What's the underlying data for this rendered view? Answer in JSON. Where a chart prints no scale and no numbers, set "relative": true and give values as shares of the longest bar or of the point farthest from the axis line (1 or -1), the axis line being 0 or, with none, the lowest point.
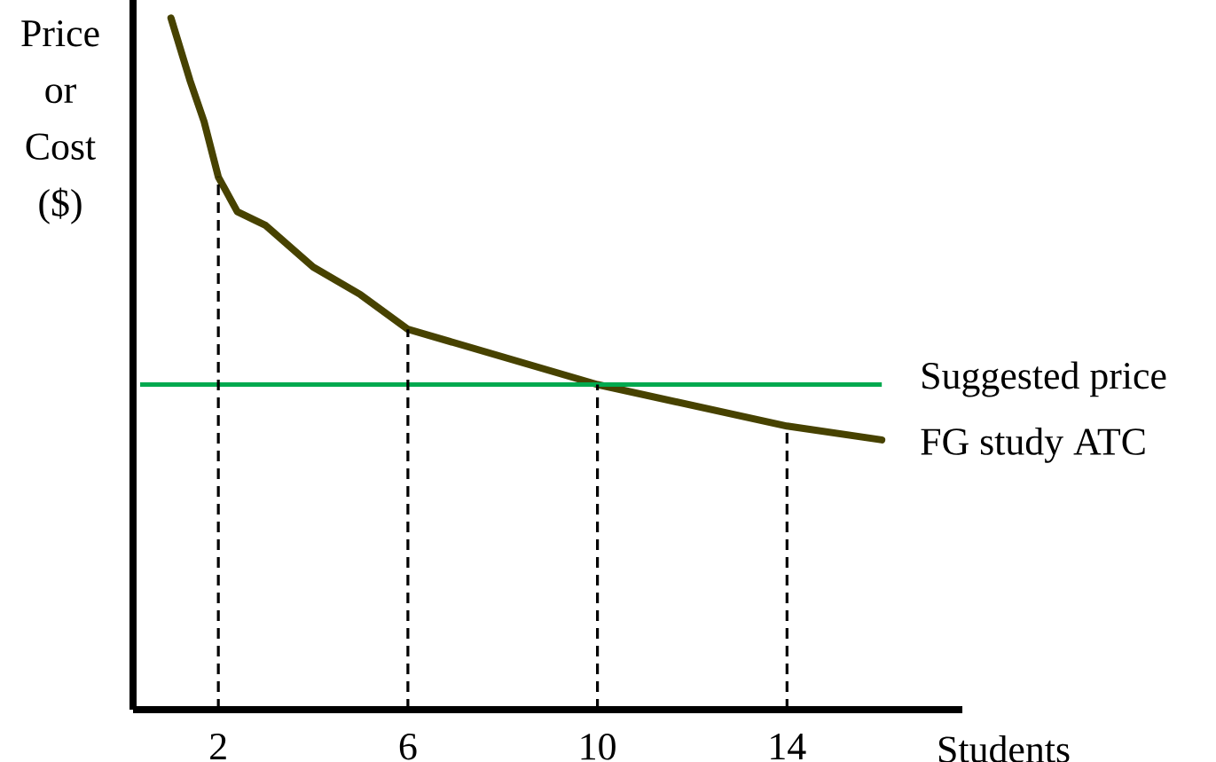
{
  "chart_data": {
    "type": "line",
    "relative": true,
    "xlabel": "Students",
    "ylabel": "Price or Cost ($)",
    "xlim": [
      0.2,
      17.7
    ],
    "xticks": [
      2,
      6,
      10,
      14
    ],
    "x": [
      1,
      1.4,
      1.7,
      2,
      2.4,
      3,
      4,
      5,
      6,
      7,
      8,
      10,
      12,
      14,
      16
    ],
    "series": [
      {
        "name": "FG study ATC",
        "color": "#474200",
        "values": [
          1.0,
          0.91,
          0.85,
          0.77,
          0.72,
          0.7,
          0.64,
          0.6,
          0.55,
          0.53,
          0.51,
          0.47,
          0.44,
          0.41,
          0.39
        ]
      }
    ],
    "ref_lines": [
      {
        "axis": "y",
        "value": 0.47,
        "label": "Suggested price",
        "color": "#00a94f"
      },
      {
        "axis": "x",
        "value": 2,
        "color": "#000000",
        "line_style": "dashed"
      },
      {
        "axis": "x",
        "value": 6,
        "color": "#000000",
        "line_style": "dashed"
      },
      {
        "axis": "x",
        "value": 10,
        "color": "#000000",
        "line_style": "dashed"
      },
      {
        "axis": "x",
        "value": 14,
        "color": "#000000",
        "line_style": "dashed"
      }
    ]
  }
}
